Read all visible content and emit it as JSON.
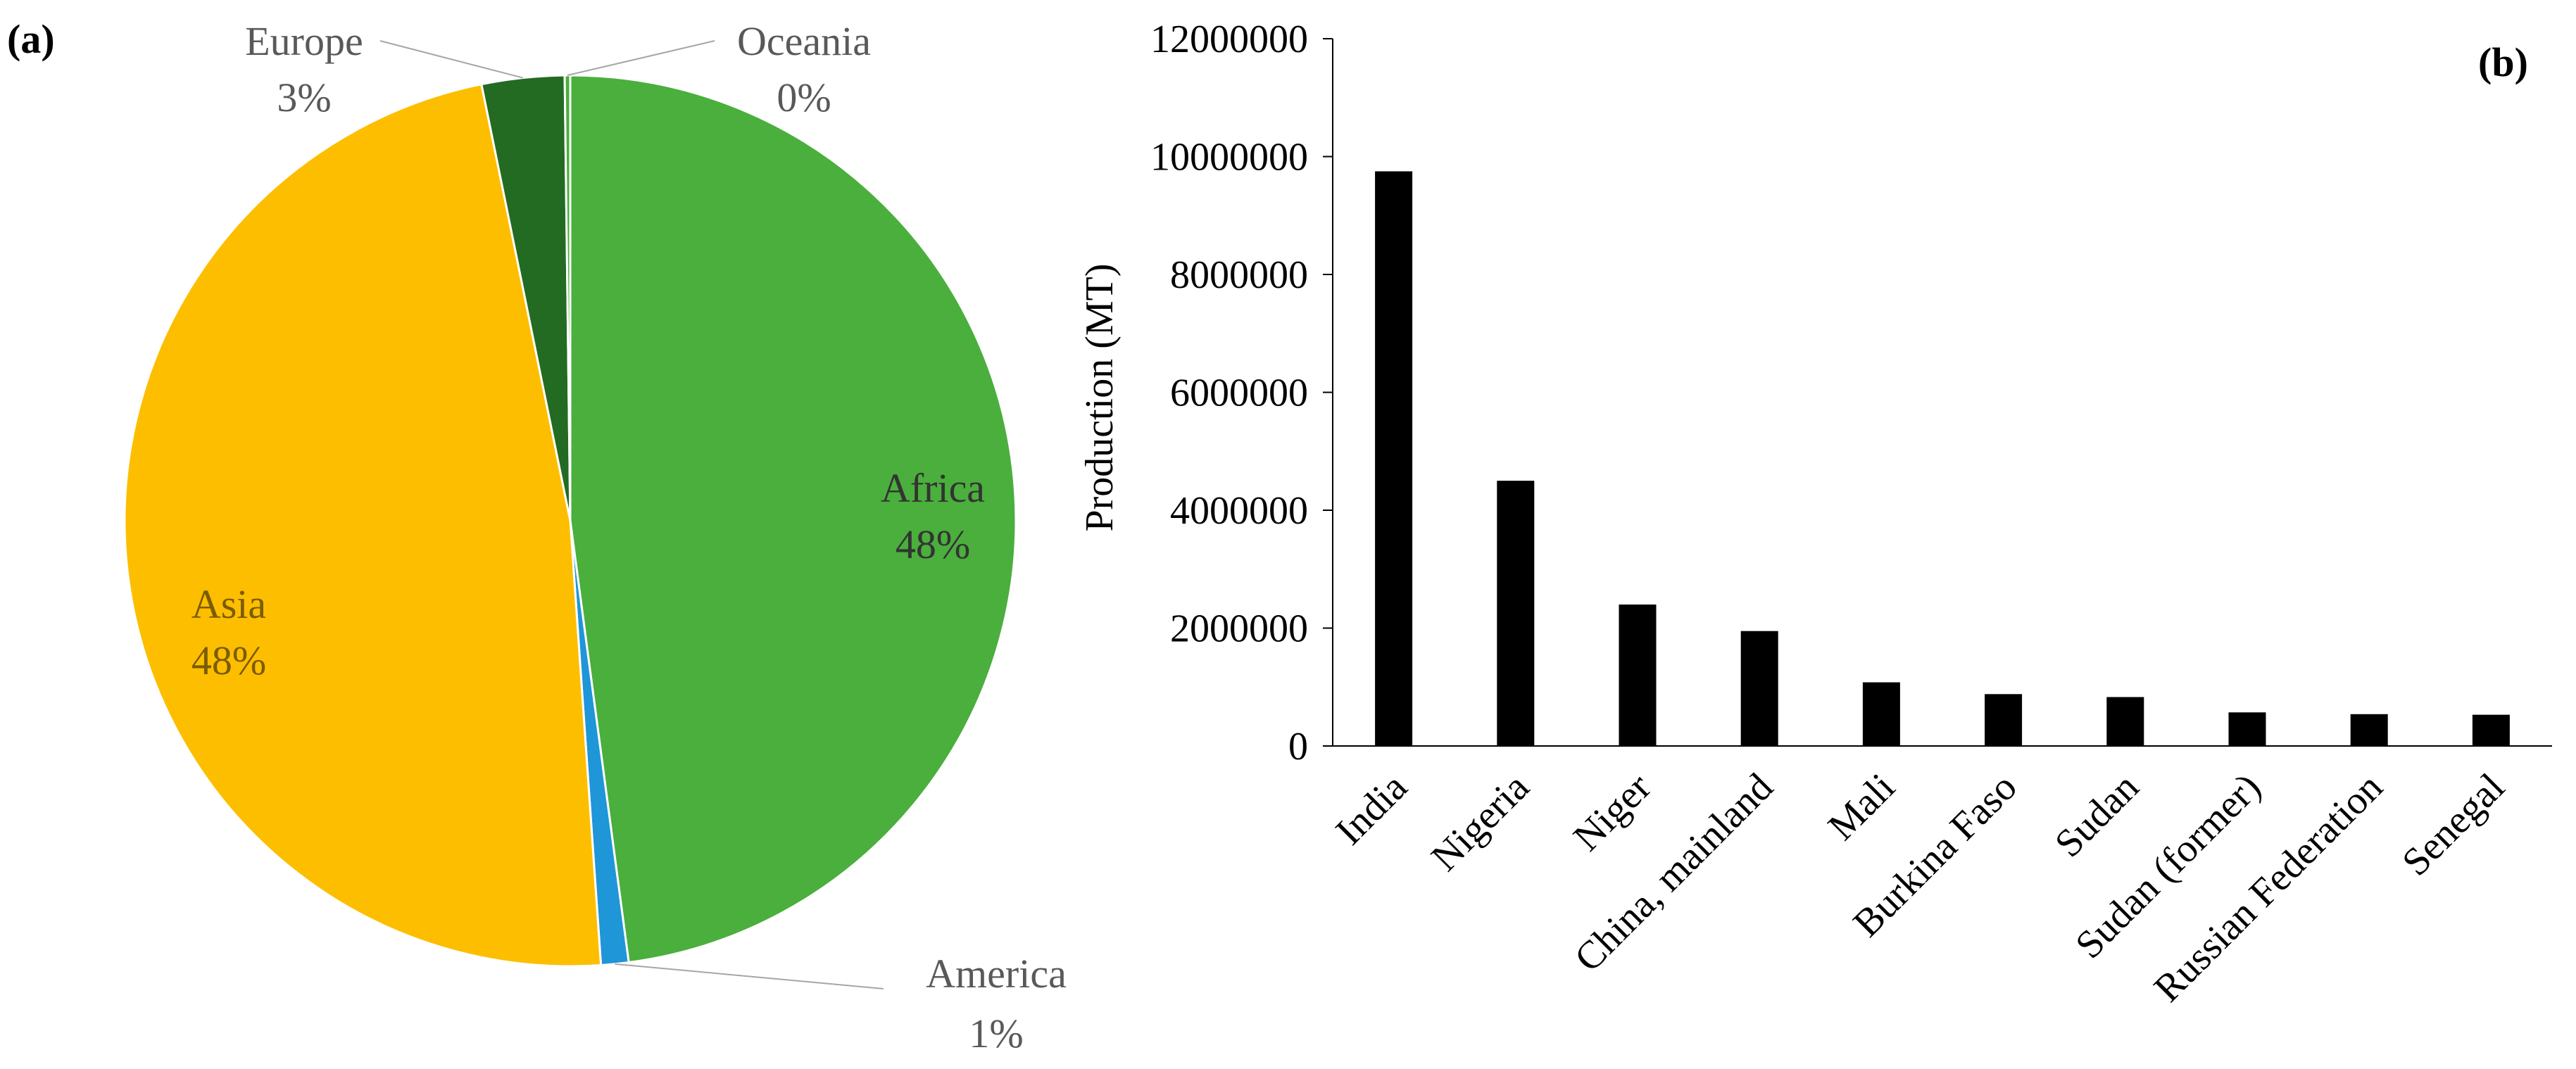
{
  "panels": {
    "a_label": "(a)",
    "b_label": "(b)"
  },
  "chart_data": [
    {
      "type": "pie",
      "panel": "(a)",
      "slices": [
        {
          "label": "Africa",
          "value": 48,
          "pct_label": "48%",
          "color": "#4aaf3c",
          "label_color": "#333333"
        },
        {
          "label": "America",
          "value": 1,
          "pct_label": "1%",
          "color": "#1e96d8",
          "label_color": "#595959"
        },
        {
          "label": "Asia",
          "value": 48,
          "pct_label": "48%",
          "color": "#fdbe00",
          "label_color": "#7a5c00"
        },
        {
          "label": "Europe",
          "value": 3,
          "pct_label": "3%",
          "color": "#236b23",
          "label_color": "#595959"
        },
        {
          "label": "Oceania",
          "value": 0.2,
          "pct_label": "0%",
          "color": "#4aaf3c",
          "label_color": "#595959"
        }
      ],
      "start_angle_deg": 0,
      "direction": "clockwise"
    },
    {
      "type": "bar",
      "panel": "(b)",
      "categories": [
        "India",
        "Nigeria",
        "Niger",
        "China, mainland",
        "Mali",
        "Burkina Faso",
        "Sudan",
        "Sudan (former)",
        "Russian Federation",
        "Senegal"
      ],
      "values": [
        9750000,
        4500000,
        2400000,
        1950000,
        1080000,
        880000,
        830000,
        570000,
        540000,
        530000
      ],
      "ylabel": "Production (MT)",
      "xlabel": "",
      "ylim": [
        0,
        12000000
      ],
      "yticks": [
        "0",
        "2000000",
        "4000000",
        "6000000",
        "8000000",
        "10000000",
        "12000000"
      ],
      "ytick_values": [
        0,
        2000000,
        4000000,
        6000000,
        8000000,
        10000000,
        12000000
      ],
      "bar_color": "#000000",
      "grid": false
    }
  ]
}
